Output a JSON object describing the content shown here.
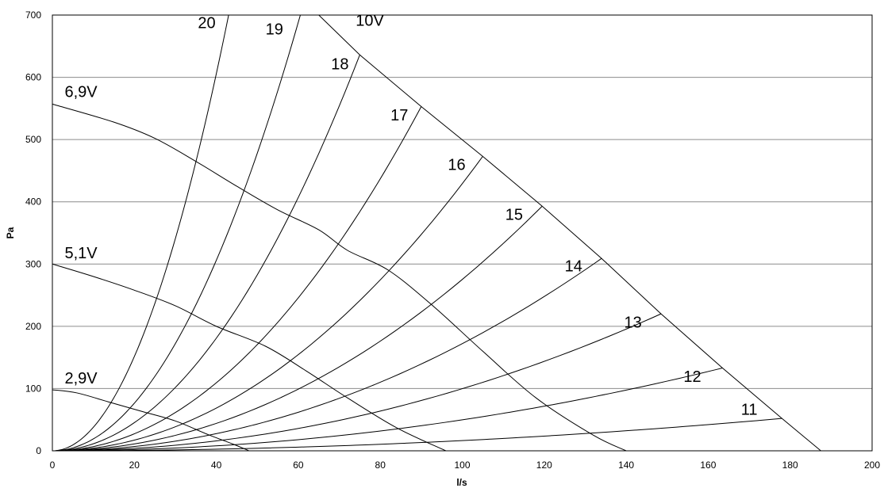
{
  "chart_data": {
    "type": "line",
    "title": "",
    "xlabel": "l/s",
    "ylabel": "Pa",
    "xlim": [
      0,
      200
    ],
    "ylim": [
      0,
      700
    ],
    "x_ticks": [
      "0",
      "20",
      "40",
      "60",
      "80",
      "100",
      "120",
      "140",
      "160",
      "180",
      "200"
    ],
    "y_ticks": [
      "0",
      "100",
      "200",
      "300",
      "400",
      "500",
      "600",
      "700"
    ],
    "grid": "horizontal",
    "legend": "none",
    "fan_curves": [
      {
        "label": "10V",
        "label_at": [
          74,
          683
        ],
        "points": [
          [
            65,
            700
          ],
          [
            75,
            636
          ],
          [
            90,
            553
          ],
          [
            105,
            473
          ],
          [
            119.5,
            393
          ],
          [
            134,
            309
          ],
          [
            148.5,
            220
          ],
          [
            163.5,
            133
          ],
          [
            178,
            52
          ],
          [
            187.5,
            0
          ]
        ]
      },
      {
        "label": "6,9V",
        "label_at": [
          3,
          568
        ],
        "points": [
          [
            0,
            557
          ],
          [
            15,
            528
          ],
          [
            25,
            502
          ],
          [
            35,
            465
          ],
          [
            45,
            425
          ],
          [
            55,
            387
          ],
          [
            65,
            355
          ],
          [
            72,
            322
          ],
          [
            82,
            290
          ],
          [
            93,
            232
          ],
          [
            105,
            160
          ],
          [
            118,
            85
          ],
          [
            132,
            25
          ],
          [
            140,
            0
          ]
        ]
      },
      {
        "label": "5,1V",
        "label_at": [
          3,
          309
        ],
        "points": [
          [
            0,
            300
          ],
          [
            10,
            280
          ],
          [
            20,
            258
          ],
          [
            30,
            233
          ],
          [
            40,
            200
          ],
          [
            52,
            168
          ],
          [
            62,
            128
          ],
          [
            72,
            85
          ],
          [
            84,
            37
          ],
          [
            96,
            0
          ]
        ]
      },
      {
        "label": "2,9V",
        "label_at": [
          3,
          108
        ],
        "points": [
          [
            0,
            98
          ],
          [
            6,
            93
          ],
          [
            14,
            78
          ],
          [
            22,
            63
          ],
          [
            30,
            48
          ],
          [
            38,
            26
          ],
          [
            44,
            11
          ],
          [
            48,
            0
          ]
        ]
      }
    ],
    "system_curves": [
      {
        "label": "20",
        "label_at": [
          35.5,
          679
        ],
        "end": [
          43,
          700
        ]
      },
      {
        "label": "19",
        "label_at": [
          52,
          669
        ],
        "end": [
          60.5,
          700
        ]
      },
      {
        "label": "18",
        "label_at": [
          68,
          613
        ],
        "end": [
          75,
          636
        ]
      },
      {
        "label": "17",
        "label_at": [
          82.5,
          531
        ],
        "end": [
          90,
          553
        ]
      },
      {
        "label": "16",
        "label_at": [
          96.5,
          451
        ],
        "end": [
          105,
          473
        ]
      },
      {
        "label": "15",
        "label_at": [
          110.5,
          371
        ],
        "end": [
          119.5,
          393
        ]
      },
      {
        "label": "14",
        "label_at": [
          125,
          288
        ],
        "end": [
          134,
          309
        ]
      },
      {
        "label": "13",
        "label_at": [
          139.5,
          198
        ],
        "end": [
          148.5,
          220
        ]
      },
      {
        "label": "12",
        "label_at": [
          154,
          111
        ],
        "end": [
          163.5,
          133
        ]
      },
      {
        "label": "11",
        "label_at": [
          168,
          58
        ],
        "end": [
          178,
          52
        ]
      }
    ]
  }
}
